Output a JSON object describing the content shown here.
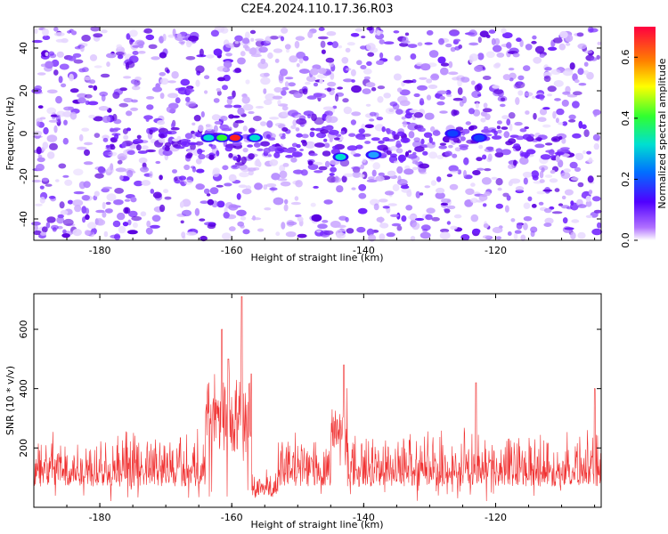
{
  "title": "C2E4.2024.110.17.36.R03",
  "chart_data": [
    {
      "type": "heatmap",
      "xlabel": "Height of straight line (km)",
      "ylabel": "Frequency (Hz)",
      "xlim": [
        -190,
        -104
      ],
      "ylim": [
        -50,
        50
      ],
      "xticks": [
        -180,
        -160,
        -140,
        -120
      ],
      "yticks": [
        -40,
        -20,
        0,
        20,
        40
      ],
      "colorbar": {
        "label": "Normalized spectral amplitude",
        "range": [
          0,
          0.7
        ],
        "ticks": [
          0.0,
          0.2,
          0.4,
          0.6
        ]
      },
      "features": [
        {
          "x": -159.5,
          "y": -2,
          "value": 0.65
        },
        {
          "x": -161.5,
          "y": -2,
          "value": 0.45
        },
        {
          "x": -163.5,
          "y": -2,
          "value": 0.3
        },
        {
          "x": -156.5,
          "y": -2,
          "value": 0.3
        },
        {
          "x": -143.5,
          "y": -11,
          "value": 0.35
        },
        {
          "x": -138.5,
          "y": -10,
          "value": 0.2
        },
        {
          "x": -126.5,
          "y": 0,
          "value": 0.15
        },
        {
          "x": -122.5,
          "y": -2,
          "value": 0.15
        }
      ]
    },
    {
      "type": "line",
      "xlabel": "Height of straight line (km)",
      "ylabel": "SNR (10 * v/v)",
      "xlim": [
        -190,
        -104
      ],
      "ylim": [
        0,
        720
      ],
      "xticks": [
        -180,
        -160,
        -140,
        -120
      ],
      "yticks": [
        200,
        400,
        600
      ],
      "color": "#f03030",
      "peaks": [
        {
          "x": -158.5,
          "y": 710
        },
        {
          "x": -161.5,
          "y": 600
        },
        {
          "x": -160.5,
          "y": 500
        },
        {
          "x": -157,
          "y": 450
        },
        {
          "x": -143,
          "y": 480
        },
        {
          "x": -123,
          "y": 420
        },
        {
          "x": -105,
          "y": 400
        }
      ]
    }
  ]
}
